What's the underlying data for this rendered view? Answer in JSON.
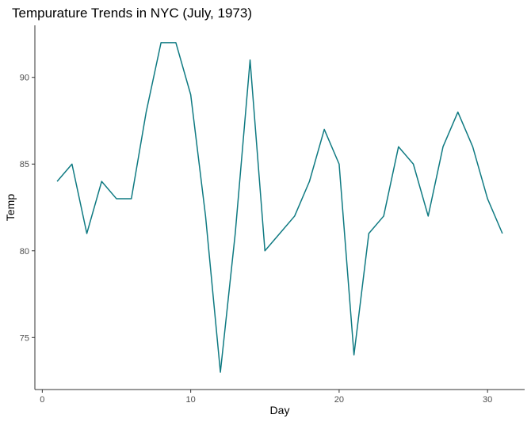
{
  "chart_data": {
    "type": "line",
    "title": "Tempurature Trends in NYC (July, 1973)",
    "xlabel": "Day",
    "ylabel": "Temp",
    "xlim": [
      -0.5,
      32.5
    ],
    "ylim": [
      72,
      93
    ],
    "x_ticks": [
      0,
      10,
      20,
      30
    ],
    "y_ticks": [
      75,
      80,
      85,
      90
    ],
    "grid": false,
    "legend": "none",
    "series": [
      {
        "x": [
          1,
          2,
          3,
          4,
          5,
          6,
          7,
          8,
          9,
          10,
          11,
          12,
          13,
          14,
          15,
          16,
          17,
          18,
          19,
          20,
          21,
          22,
          23,
          24,
          25,
          26,
          27,
          28,
          29,
          30,
          31
        ],
        "values": [
          84,
          85,
          81,
          84,
          83,
          83,
          88,
          92,
          92,
          89,
          82,
          73,
          81,
          91,
          80,
          81,
          82,
          84,
          87,
          85,
          74,
          81,
          82,
          86,
          85,
          82,
          86,
          88,
          86,
          83,
          81
        ],
        "color": "#0f7a82"
      }
    ]
  }
}
